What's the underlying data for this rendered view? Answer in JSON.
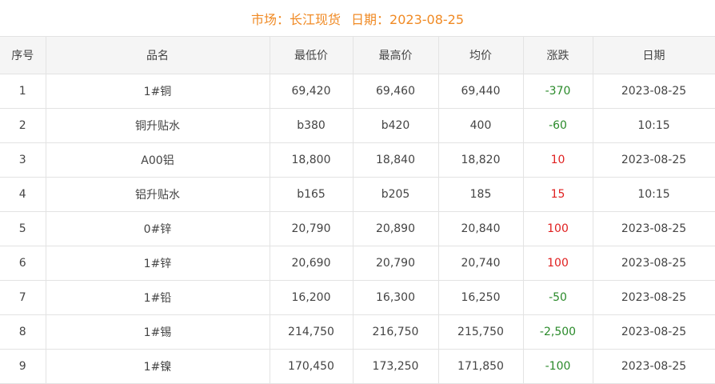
{
  "title": {
    "market_label": "市场：长江现货",
    "date_label": "日期：2023-08-25"
  },
  "colors": {
    "title": "#f08a24",
    "up": "#e02020",
    "down": "#2a8a2a"
  },
  "headers": [
    "序号",
    "品名",
    "最低价",
    "最高价",
    "均价",
    "涨跌",
    "日期"
  ],
  "rows": [
    [
      "1",
      "1#铜",
      "69,420",
      "69,460",
      "69,440",
      "-370",
      "2023-08-25"
    ],
    [
      "2",
      "铜升贴水",
      "b380",
      "b420",
      "400",
      "-60",
      "10:15"
    ],
    [
      "3",
      "A00铝",
      "18,800",
      "18,840",
      "18,820",
      "10",
      "2023-08-25"
    ],
    [
      "4",
      "铝升贴水",
      "b165",
      "b205",
      "185",
      "15",
      "10:15"
    ],
    [
      "5",
      "0#锌",
      "20,790",
      "20,890",
      "20,840",
      "100",
      "2023-08-25"
    ],
    [
      "6",
      "1#锌",
      "20,690",
      "20,790",
      "20,740",
      "100",
      "2023-08-25"
    ],
    [
      "7",
      "1#铅",
      "16,200",
      "16,300",
      "16,250",
      "-50",
      "2023-08-25"
    ],
    [
      "8",
      "1#锡",
      "214,750",
      "216,750",
      "215,750",
      "-2,500",
      "2023-08-25"
    ],
    [
      "9",
      "1#镍",
      "170,450",
      "173,250",
      "171,850",
      "-100",
      "2023-08-25"
    ]
  ]
}
